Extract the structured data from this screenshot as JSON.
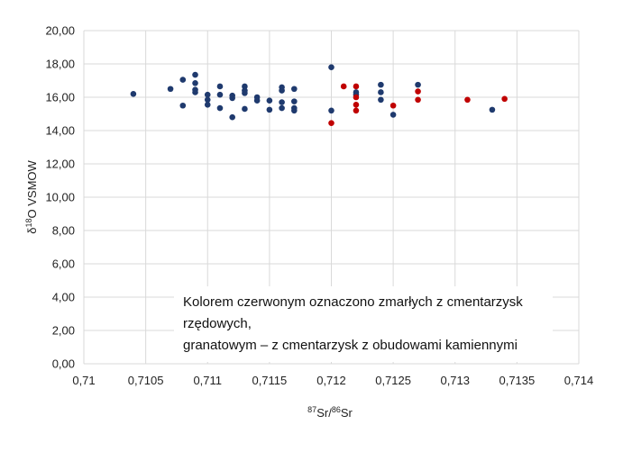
{
  "chart_data": {
    "type": "scatter",
    "title": "",
    "xlabel_parts": [
      "87",
      "Sr/",
      "86",
      "Sr"
    ],
    "ylabel_parts": [
      "δ",
      "18",
      "O VSMOW"
    ],
    "xlim": [
      0.71,
      0.714
    ],
    "ylim": [
      0,
      20
    ],
    "x_ticks": [
      0.71,
      0.7105,
      0.711,
      0.7115,
      0.712,
      0.7125,
      0.713,
      0.7135,
      0.714
    ],
    "x_tick_labels": [
      "0,71",
      "0,7105",
      "0,711",
      "0,7115",
      "0,712",
      "0,7125",
      "0,713",
      "0,7135",
      "0,714"
    ],
    "y_ticks": [
      0,
      2,
      4,
      6,
      8,
      10,
      12,
      14,
      16,
      18,
      20
    ],
    "y_tick_labels": [
      "0,00",
      "2,00",
      "4,00",
      "6,00",
      "8,00",
      "10,00",
      "12,00",
      "14,00",
      "16,00",
      "18,00",
      "20,00"
    ],
    "grid": true,
    "legend": "none",
    "annotation": [
      "Kolorem czerwonym oznaczono zmarłych z cmentarzysk rzędowych,",
      "granatowym – z cmentarzysk z obudowami kamiennymi"
    ],
    "series": [
      {
        "color": "#1f3a6e",
        "points": [
          [
            0.7104,
            16.2
          ],
          [
            0.7107,
            16.5
          ],
          [
            0.7108,
            17.05
          ],
          [
            0.7108,
            15.5
          ],
          [
            0.7109,
            17.35
          ],
          [
            0.7109,
            16.85
          ],
          [
            0.7109,
            16.45
          ],
          [
            0.7109,
            16.3
          ],
          [
            0.711,
            16.15
          ],
          [
            0.711,
            15.85
          ],
          [
            0.711,
            15.55
          ],
          [
            0.7111,
            16.65
          ],
          [
            0.7111,
            16.15
          ],
          [
            0.7111,
            15.35
          ],
          [
            0.7112,
            16.1
          ],
          [
            0.7112,
            15.95
          ],
          [
            0.7112,
            14.8
          ],
          [
            0.7113,
            16.65
          ],
          [
            0.7113,
            16.4
          ],
          [
            0.7113,
            16.25
          ],
          [
            0.7113,
            15.3
          ],
          [
            0.7114,
            16.0
          ],
          [
            0.7114,
            15.8
          ],
          [
            0.7115,
            15.8
          ],
          [
            0.7115,
            15.25
          ],
          [
            0.7116,
            16.6
          ],
          [
            0.7116,
            16.4
          ],
          [
            0.7116,
            15.7
          ],
          [
            0.7116,
            15.35
          ],
          [
            0.7117,
            16.5
          ],
          [
            0.7117,
            15.75
          ],
          [
            0.7117,
            15.35
          ],
          [
            0.7117,
            15.2
          ],
          [
            0.712,
            17.8
          ],
          [
            0.712,
            15.2
          ],
          [
            0.7122,
            16.3
          ],
          [
            0.7122,
            16.15
          ],
          [
            0.7124,
            16.75
          ],
          [
            0.7124,
            16.3
          ],
          [
            0.7124,
            15.85
          ],
          [
            0.7125,
            14.95
          ],
          [
            0.7127,
            16.75
          ],
          [
            0.7133,
            15.25
          ]
        ]
      },
      {
        "color": "#c00000",
        "points": [
          [
            0.712,
            14.45
          ],
          [
            0.7121,
            16.65
          ],
          [
            0.7122,
            16.65
          ],
          [
            0.7122,
            16.0
          ],
          [
            0.7122,
            15.55
          ],
          [
            0.7122,
            15.2
          ],
          [
            0.7125,
            15.5
          ],
          [
            0.7127,
            16.35
          ],
          [
            0.7127,
            15.85
          ],
          [
            0.7131,
            15.85
          ],
          [
            0.7134,
            15.9
          ]
        ]
      }
    ]
  }
}
